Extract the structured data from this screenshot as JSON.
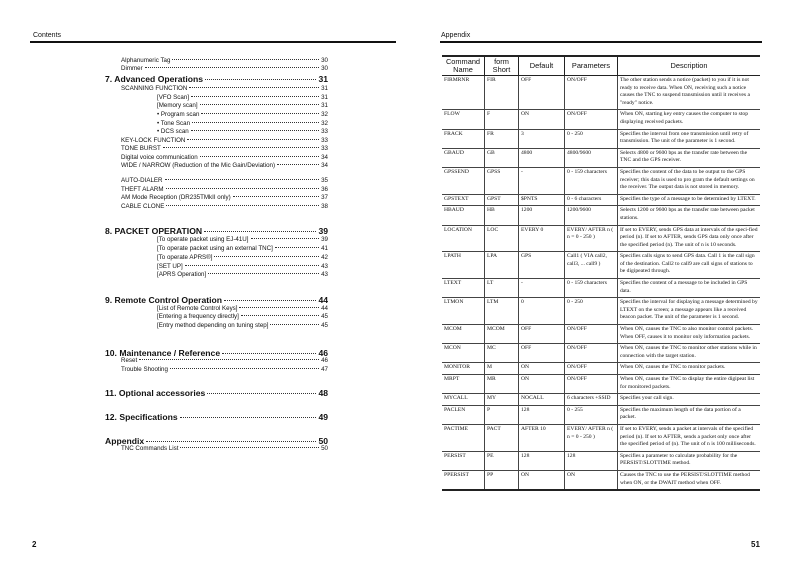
{
  "left_page": {
    "header": "Contents",
    "page_number": "2",
    "toc": [
      {
        "label": "Alphanumeric Tag",
        "page": "30",
        "level": "item"
      },
      {
        "label": "Dimmer",
        "page": "30",
        "level": "item"
      },
      {
        "label": "7. Advanced Operations",
        "page": "31",
        "level": "head"
      },
      {
        "label": "SCANNING FUNCTION",
        "page": "31",
        "level": "item"
      },
      {
        "label": "[VFO Scan]",
        "page": "31",
        "level": "sub"
      },
      {
        "label": "[Memory scan]",
        "page": "31",
        "level": "sub"
      },
      {
        "label": "• Program scan",
        "page": "32",
        "level": "sub"
      },
      {
        "label": "• Tone Scan",
        "page": "32",
        "level": "sub"
      },
      {
        "label": "• DCS scan",
        "page": "33",
        "level": "sub"
      },
      {
        "label": "KEY-LOCK FUNCTION",
        "page": "33",
        "level": "item"
      },
      {
        "label": "TONE BURST",
        "page": "33",
        "level": "item"
      },
      {
        "label": "Digital voice communication",
        "page": "34",
        "level": "item"
      },
      {
        "label": "WIDE / NARROW (Reduction of the Mic Gain/Deviation)",
        "page": "34",
        "level": "item"
      },
      {
        "label": "AUTO-DIALER",
        "page": "35",
        "level": "item"
      },
      {
        "label": "THEFT ALARM",
        "page": "36",
        "level": "item"
      },
      {
        "label": "AM Mode Reception (DR235TMkII only)",
        "page": "37",
        "level": "item"
      },
      {
        "label": "CABLE CLONE",
        "page": "38",
        "level": "item"
      },
      {
        "label": "8. PACKET OPERATION",
        "page": "39",
        "level": "head"
      },
      {
        "label": "[To operate packet using EJ-41U]",
        "page": "39",
        "level": "sub"
      },
      {
        "label": "[To operate packet using an external TNC]",
        "page": "41",
        "level": "sub"
      },
      {
        "label": "[To operate APRS®]",
        "page": "42",
        "level": "sub"
      },
      {
        "label": "[SET UP]",
        "page": "43",
        "level": "sub"
      },
      {
        "label": "[APRS Operation]",
        "page": "43",
        "level": "sub"
      },
      {
        "label": "9. Remote Control Operation",
        "page": "44",
        "level": "head"
      },
      {
        "label": "[List of Remote Control  Keys]",
        "page": "44",
        "level": "sub"
      },
      {
        "label": "[Entering a frequency directly]",
        "page": "45",
        "level": "sub"
      },
      {
        "label": "[Entry method depending on tuning step]",
        "page": "45",
        "level": "sub"
      },
      {
        "label": "10. Maintenance / Reference",
        "page": "46",
        "level": "head"
      },
      {
        "label": "Reset",
        "page": "46",
        "level": "item"
      },
      {
        "label": "Trouble Shooting",
        "page": "47",
        "level": "item"
      },
      {
        "label": "11. Optional accessories",
        "page": "48",
        "level": "head"
      },
      {
        "label": "12. Specifications",
        "page": "49",
        "level": "head"
      },
      {
        "label": "Appendix",
        "page": "50",
        "level": "head"
      },
      {
        "label": "TNC Commands List",
        "page": "50",
        "level": "item"
      }
    ]
  },
  "right_page": {
    "header": "Appendix",
    "page_number": "51",
    "table": {
      "columns": [
        "Command Name",
        "form Short",
        "Default",
        "Parameters",
        "Description"
      ],
      "rows": [
        [
          "FIRMRNR",
          "FIR",
          "OFF",
          "ON/OFF",
          "The other station sends a notice (packet) to you if it is not ready to receive data. When ON, receiving such a notice causes the TNC to suspend transmission until it receives a \"ready\" notice."
        ],
        [
          "FLOW",
          "F",
          "ON",
          "ON/OFF",
          "When ON, starting key entry causes the computer to stop displaying received packets."
        ],
        [
          "FRACK",
          "FR",
          "3",
          "0 - 250",
          "Specifies the interval from one transmission until retry of transmission. The unit of the parameter is 1 second."
        ],
        [
          "GBAUD",
          "GB",
          "4800",
          "4800/9600",
          "Selects 4800 or 9600 bps as the transfer rate between the TNC and the GPS receiver."
        ],
        [
          "GPSSEND",
          "GPSS",
          "-",
          "0 - 159 characters",
          "Specifies the content of the data to be output to the GPS receiver; this data is used to pro gram the default settings on the receiver. The output data is not  stored in memory."
        ],
        [
          "GPSTEXT",
          "GPST",
          "$PNTS",
          "0 - 6 characters",
          "Specifies the type of a message to be determined by LTEXT."
        ],
        [
          "HBAUD",
          "HB",
          "1200",
          "1200/9600",
          "Selects 1200 or 9600 bps as the transfer rate between packet stations."
        ],
        [
          "LOCATION",
          "LOC",
          "EVERY 0",
          "EVERY/ AFTER n ( n = 0 - 250 )",
          "If set to EVERY, sends GPS data at intervals of the speci-fied period (n). If set  to AFTER, sends GPS data only once after the specified period (n). The unit of n is 10 seconds."
        ],
        [
          "LPATH",
          "LPA",
          "GPS",
          "Call1 ( VIA call2, call3, ... call9 )",
          "Specifies calls signs to send GPS data. Call 1 is the call sign of the destination. Call2 to call9 are call signs of stations to be digipeated through."
        ],
        [
          "LTEXT",
          "LT",
          "-",
          "0 - 159 characters",
          "Specifies the content of a message to be included in GPS data."
        ],
        [
          "LTMON",
          "LTM",
          "0",
          "0 - 250",
          "Specifies the interval for displaying a message determined by LTEXT on the screen; a message appears like a received beacon packet. The unit of the parameter is 1 second."
        ],
        [
          "MCOM",
          "MCOM",
          "OFF",
          "ON/OFF",
          "When ON, causes the TNC to also monitor control packets. When OFF, causes it to monitor only information packets."
        ],
        [
          "MCON",
          "MC",
          "OFF",
          "ON/OFF",
          "When ON, causes the TNC to monitor other stations while in connection with the target station."
        ],
        [
          "MONITOR",
          "M",
          "ON",
          "ON/OFF",
          "When ON, causes the TNC to monitor packets."
        ],
        [
          "MRPT",
          "MR",
          "ON",
          "ON/OFF",
          "When ON, causes the TNC to display the entire digipeat list for monitored packets."
        ],
        [
          "MYCALL",
          "MY",
          "NOCALL",
          "6 characters +SSID",
          "Specifies your call sign."
        ],
        [
          "PACLEN",
          "P",
          "128",
          "0 - 255",
          "Specifies the maximum length of the data portion of a packet."
        ],
        [
          "PACTIME",
          "PACT",
          "AFTER 10",
          "EVERY/ AFTER n ( n = 0 - 250 )",
          "If set to EVERY, sends a packet at intervals of the specified period (n). If set to AFTER, sends a packet only once after the specified period of (n). The unit of n is 100 milliseconds."
        ],
        [
          "PERSIST",
          "PE",
          "128",
          "128",
          "Specifies a parameter to calculate probability for the PERSIST/SLOTTIME method."
        ],
        [
          "PPERSIST",
          "PP",
          "ON",
          "ON",
          "Causes the TNC to use the PERSIST/SLOTTIME method when ON, or the DWAIT method when OFF."
        ]
      ]
    }
  }
}
